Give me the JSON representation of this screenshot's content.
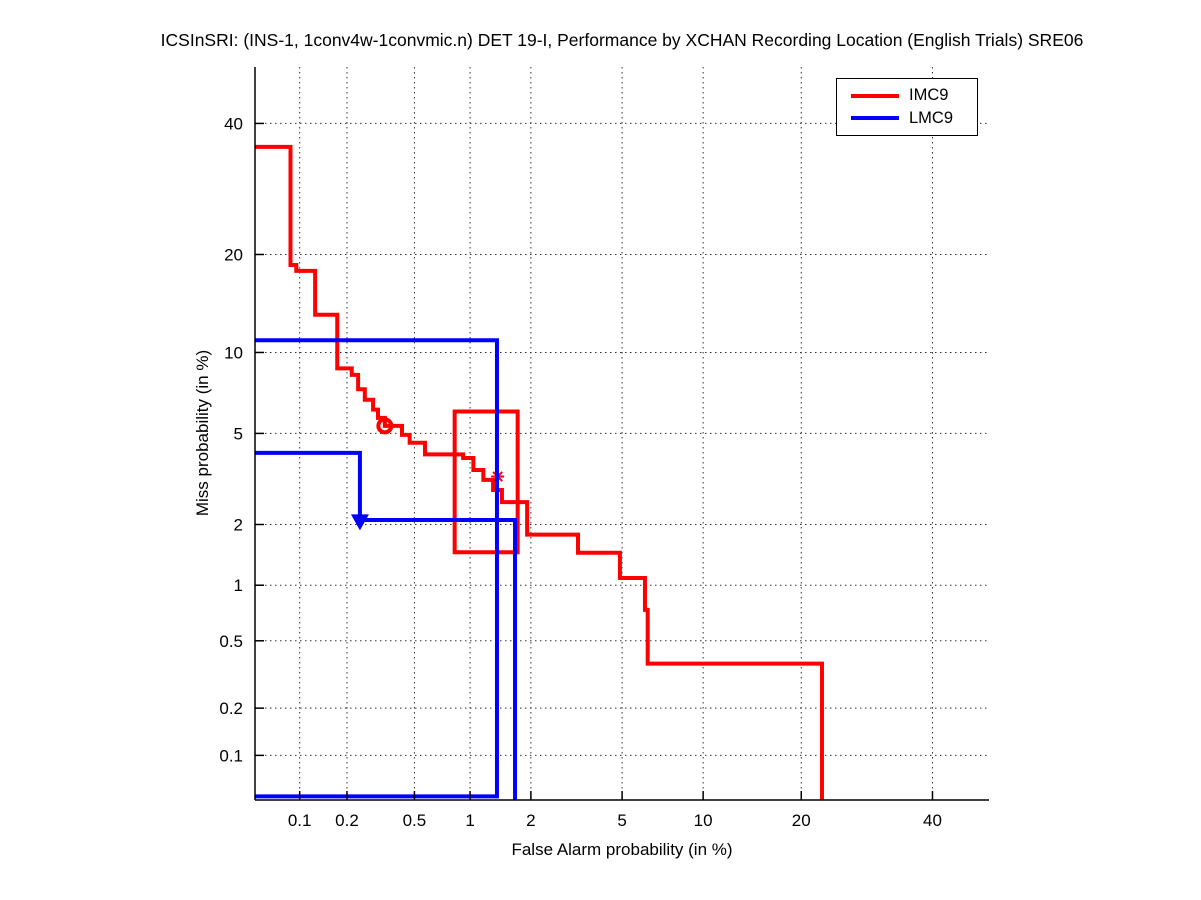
{
  "title": "ICSInSRI: (INS-1, 1conv4w-1convmic.n) DET 19-I,  Performance by XCHAN Recording Location (English Trials) SRE06",
  "legend": {
    "items": [
      {
        "label": "IMC9",
        "color": "#ff0000"
      },
      {
        "label": "LMC9",
        "color": "#0000ff"
      }
    ]
  },
  "chart_data": {
    "type": "line",
    "subtype": "DET-curve (probit-probit staircase)",
    "title": "ICSInSRI: (INS-1, 1conv4w-1convmic.n) DET 19-I,  Performance by XCHAN Recording Location (English Trials) SRE06",
    "xlabel": "False Alarm probability (in %)",
    "ylabel": "Miss probability (in %)",
    "xlim": [
      0.05,
      50
    ],
    "ylim": [
      0.05,
      50
    ],
    "x_ticks": [
      0.1,
      0.2,
      0.5,
      1,
      2,
      5,
      10,
      20,
      40
    ],
    "y_ticks": [
      0.1,
      0.2,
      0.5,
      1,
      2,
      5,
      10,
      20,
      40
    ],
    "grid": "dotted",
    "legend_position": "top-right",
    "series": [
      {
        "name": "IMC9",
        "color": "#ff0000",
        "points": [
          [
            0.05,
            36
          ],
          [
            0.087,
            36
          ],
          [
            0.087,
            18.7
          ],
          [
            0.095,
            18.7
          ],
          [
            0.095,
            18
          ],
          [
            0.126,
            18
          ],
          [
            0.126,
            13.3
          ],
          [
            0.174,
            13.3
          ],
          [
            0.174,
            8.8
          ],
          [
            0.214,
            8.8
          ],
          [
            0.214,
            8.35
          ],
          [
            0.234,
            8.35
          ],
          [
            0.234,
            7.4
          ],
          [
            0.257,
            7.4
          ],
          [
            0.257,
            6.76
          ],
          [
            0.288,
            6.76
          ],
          [
            0.288,
            6.2
          ],
          [
            0.308,
            6.2
          ],
          [
            0.308,
            5.76
          ],
          [
            0.338,
            5.76
          ],
          [
            0.338,
            5.36
          ],
          [
            0.425,
            5.36
          ],
          [
            0.425,
            4.93
          ],
          [
            0.47,
            4.93
          ],
          [
            0.47,
            4.58
          ],
          [
            0.573,
            4.58
          ],
          [
            0.573,
            4.1
          ],
          [
            0.92,
            4.1
          ],
          [
            0.92,
            3.96
          ],
          [
            1.04,
            3.96
          ],
          [
            1.04,
            3.52
          ],
          [
            1.17,
            3.52
          ],
          [
            1.17,
            3.19
          ],
          [
            1.31,
            3.19
          ],
          [
            1.31,
            2.88
          ],
          [
            1.45,
            2.88
          ],
          [
            1.45,
            2.54
          ],
          [
            1.92,
            2.54
          ],
          [
            1.92,
            1.79
          ],
          [
            3.27,
            1.79
          ],
          [
            3.27,
            1.46
          ],
          [
            4.9,
            1.46
          ],
          [
            4.9,
            1.09
          ],
          [
            6.15,
            1.09
          ],
          [
            6.15,
            0.74
          ],
          [
            6.3,
            0.74
          ],
          [
            6.3,
            0.37
          ],
          [
            22.7,
            0.37
          ],
          [
            22.7,
            0.05
          ]
        ],
        "markers": [
          {
            "shape": "circle",
            "at": [
              0.338,
              5.36
            ]
          },
          {
            "shape": "asterisk",
            "at": [
              1.38,
              3.3
            ]
          }
        ],
        "aux_path": {
          "closed": true,
          "points": [
            [
              0.83,
              6.1
            ],
            [
              1.73,
              6.1
            ],
            [
              1.73,
              1.47
            ],
            [
              0.83,
              1.47
            ]
          ]
        }
      },
      {
        "name": "LMC9",
        "color": "#0000ff",
        "points": [
          [
            0.05,
            4.16
          ],
          [
            0.24,
            4.16
          ],
          [
            0.24,
            2.1
          ],
          [
            1.68,
            2.1
          ],
          [
            1.68,
            0.05
          ]
        ],
        "markers": [
          {
            "shape": "triangle-down",
            "at": [
              0.24,
              2.07
            ]
          }
        ],
        "aux_path": {
          "closed": false,
          "points": [
            [
              0.05,
              11
            ],
            [
              1.37,
              11
            ],
            [
              1.37,
              0.053
            ],
            [
              0.05,
              0.053
            ]
          ]
        }
      }
    ]
  }
}
